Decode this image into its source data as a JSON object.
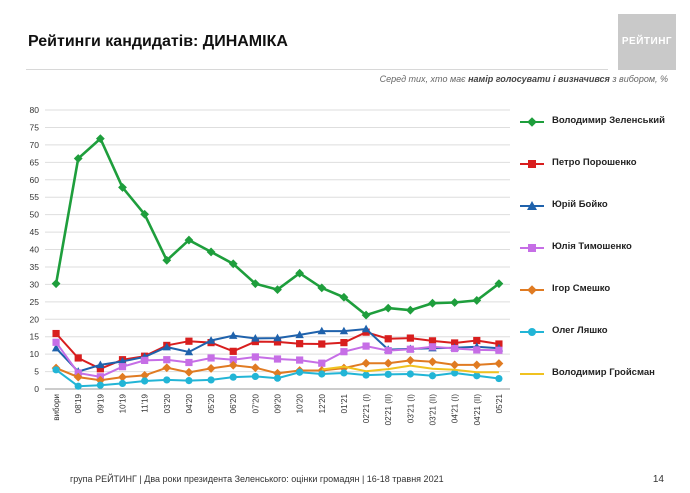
{
  "header": {
    "title": "Рейтинги кандидатів: ДИНАМІКА",
    "logo_text": "РЕЙТИНГ",
    "subtitle_prefix": "Серед тих, хто має ",
    "subtitle_bold": "намір голосувати і визначився",
    "subtitle_suffix": " з вибором, %"
  },
  "footer": {
    "text": "група РЕЙТИНГ | Два роки президента Зеленського: оцінки громадян  | 16-18 травня 2021",
    "page": "14"
  },
  "chart_data": {
    "type": "line",
    "title": "Рейтинги кандидатів: ДИНАМІКА",
    "ylabel": "%",
    "ylim": [
      0,
      80
    ],
    "yticks": [
      0,
      5,
      10,
      15,
      20,
      25,
      30,
      35,
      40,
      45,
      50,
      55,
      60,
      65,
      70,
      75,
      80
    ],
    "grid": true,
    "legend_position": "right",
    "categories": [
      "вибори",
      "08'19",
      "09'19",
      "10'19",
      "11'19",
      "03'20",
      "04'20",
      "05'20",
      "06'20",
      "07'20",
      "09'20",
      "10'20",
      "12'20",
      "01'21",
      "02'21 (I)",
      "02'21 (II)",
      "03'21 (I)",
      "03'21 (II)",
      "04'21 (I)",
      "04'21 (II)",
      "05'21"
    ],
    "series": [
      {
        "name": "Володимир Зеленський",
        "color": "#1e9e3c",
        "marker": "diamond",
        "values": [
          30.2,
          66.1,
          71.8,
          57.8,
          50.1,
          36.9,
          42.7,
          39.3,
          35.9,
          30.2,
          28.5,
          33.2,
          29.0,
          26.3,
          21.2,
          23.2,
          22.6,
          24.6,
          24.8,
          25.4,
          30.2
        ]
      },
      {
        "name": "Петро Порошенко",
        "color": "#d81e1e",
        "marker": "square",
        "values": [
          15.9,
          8.9,
          5.8,
          8.4,
          9.4,
          12.5,
          13.7,
          13.3,
          10.8,
          13.6,
          13.5,
          13.0,
          12.9,
          13.3,
          16.3,
          14.4,
          14.6,
          13.8,
          13.2,
          13.9,
          12.9
        ]
      },
      {
        "name": "Юрій Бойко",
        "color": "#1f62ac",
        "marker": "triangle",
        "values": [
          11.7,
          5.0,
          6.9,
          7.9,
          9.2,
          12.0,
          10.6,
          13.9,
          15.3,
          14.5,
          14.6,
          15.5,
          16.6,
          16.6,
          17.2,
          11.3,
          11.5,
          11.7,
          11.8,
          12.1,
          11.7
        ]
      },
      {
        "name": "Юлія Тимошенко",
        "color": "#c66ee6",
        "marker": "square",
        "values": [
          13.4,
          4.6,
          3.5,
          6.4,
          8.2,
          8.4,
          7.6,
          8.9,
          8.4,
          9.2,
          8.6,
          8.3,
          7.4,
          10.7,
          12.3,
          11.0,
          11.4,
          12.1,
          11.6,
          11.2,
          11.1
        ]
      },
      {
        "name": "Ігор Смешко",
        "color": "#e07b22",
        "marker": "diamond",
        "values": [
          6.0,
          3.4,
          2.5,
          3.4,
          3.9,
          6.1,
          4.8,
          5.9,
          6.8,
          6.1,
          4.5,
          5.3,
          5.3,
          6.0,
          7.4,
          7.4,
          8.2,
          7.8,
          6.9,
          6.9,
          7.3
        ]
      },
      {
        "name": "Олег Ляшко",
        "color": "#22b5d6",
        "marker": "circle",
        "values": [
          5.5,
          0.8,
          1.1,
          1.6,
          2.3,
          2.6,
          2.4,
          2.6,
          3.4,
          3.6,
          3.1,
          4.8,
          4.3,
          4.6,
          4.0,
          4.2,
          4.3,
          3.8,
          4.6,
          3.8,
          3.0
        ]
      },
      {
        "name": "Володимир Гройсман",
        "color": "#f0c220",
        "marker": "none",
        "values": [
          null,
          null,
          null,
          null,
          null,
          null,
          null,
          null,
          null,
          null,
          null,
          null,
          5.6,
          6.4,
          5.1,
          5.7,
          6.7,
          5.8,
          5.5,
          4.8,
          4.8
        ]
      }
    ]
  }
}
